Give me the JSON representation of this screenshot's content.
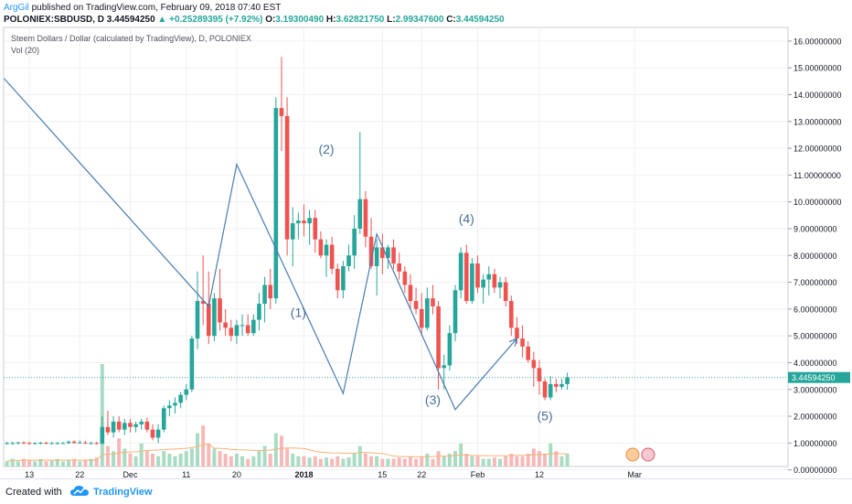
{
  "header": {
    "author": "ArgGil",
    "published": "published on TradingView.com, February 09, 2018 07:40 EST",
    "symbol": "POLONIEX:SBDUSD, D",
    "last": "3.44594250",
    "change": "▲ +0.25289395 (+7.92%)",
    "o_label": "O:",
    "o": "3.19300490",
    "h_label": "H:",
    "h": "3.62821750",
    "l_label": "L:",
    "l": "2.99347600",
    "c_label": "C:",
    "c": "3.44594250"
  },
  "footer": {
    "created": "Created with",
    "brand": "TradingView"
  },
  "colors": {
    "up": "#26a69a",
    "down": "#ef5350",
    "wave": "#4a7cb0",
    "price_line": "#26a69a",
    "vol_ma": "#f5b27a"
  },
  "chart_data": {
    "type": "candlestick",
    "title": "Steem Dollars / Dollar (calculated by TradingView), D, POLONIEX",
    "subtitle": "Vol (20)",
    "ylim": [
      0,
      16.2
    ],
    "y_ticks": [
      "16.00000000",
      "15.00000000",
      "14.00000000",
      "13.00000000",
      "12.00000000",
      "11.00000000",
      "10.00000000",
      "9.00000000",
      "8.00000000",
      "7.00000000",
      "6.00000000",
      "5.00000000",
      "4.00000000",
      "3.00000000",
      "2.00000000",
      "1.00000000",
      "0.00000000"
    ],
    "x_ticks": [
      {
        "label": "13",
        "date": "2017-11-13"
      },
      {
        "label": "22",
        "date": "2017-11-22"
      },
      {
        "label": "Dec",
        "date": "2017-12-01"
      },
      {
        "label": "11",
        "date": "2017-12-11"
      },
      {
        "label": "20",
        "date": "2017-12-20"
      },
      {
        "label": "2018",
        "date": "2018-01-01"
      },
      {
        "label": "15",
        "date": "2018-01-15"
      },
      {
        "label": "22",
        "date": "2018-01-22"
      },
      {
        "label": "Feb",
        "date": "2018-02-01"
      },
      {
        "label": "12",
        "date": "2018-02-12"
      },
      {
        "label": "Mar",
        "date": "2018-03-01"
      }
    ],
    "start_date": "2017-11-09",
    "current_price": "3.44594250",
    "candles": [
      [
        1.0,
        1.05,
        0.95,
        1.0
      ],
      [
        1.0,
        1.05,
        0.95,
        1.0
      ],
      [
        1.0,
        1.05,
        0.95,
        1.02
      ],
      [
        1.02,
        1.06,
        0.96,
        1.0
      ],
      [
        1.0,
        1.05,
        0.95,
        0.98
      ],
      [
        0.98,
        1.02,
        0.94,
        1.0
      ],
      [
        1.0,
        1.04,
        0.95,
        1.01
      ],
      [
        1.01,
        1.05,
        0.96,
        1.0
      ],
      [
        1.0,
        1.04,
        0.95,
        1.0
      ],
      [
        1.0,
        1.04,
        0.95,
        1.0
      ],
      [
        1.0,
        1.04,
        0.96,
        1.0
      ],
      [
        1.0,
        1.1,
        0.96,
        1.05
      ],
      [
        1.05,
        1.1,
        0.98,
        1.0
      ],
      [
        1.0,
        1.1,
        0.97,
        1.02
      ],
      [
        1.02,
        1.08,
        0.96,
        1.0
      ],
      [
        1.0,
        1.05,
        0.95,
        1.0
      ],
      [
        1.0,
        1.05,
        0.95,
        0.98
      ],
      [
        0.98,
        2.0,
        0.95,
        1.6
      ],
      [
        1.6,
        2.2,
        1.3,
        1.4
      ],
      [
        1.4,
        2.0,
        1.2,
        1.8
      ],
      [
        1.8,
        2.0,
        1.4,
        1.5
      ],
      [
        1.5,
        1.9,
        1.3,
        1.75
      ],
      [
        1.75,
        1.9,
        1.4,
        1.6
      ],
      [
        1.6,
        1.8,
        1.4,
        1.7
      ],
      [
        1.7,
        1.9,
        1.5,
        1.8
      ],
      [
        1.8,
        1.95,
        1.4,
        1.5
      ],
      [
        1.5,
        1.7,
        1.1,
        1.2
      ],
      [
        1.2,
        1.7,
        1.0,
        1.5
      ],
      [
        1.5,
        2.4,
        1.4,
        2.3
      ],
      [
        2.3,
        2.6,
        2.0,
        2.4
      ],
      [
        2.4,
        2.7,
        2.1,
        2.5
      ],
      [
        2.5,
        2.9,
        2.3,
        2.8
      ],
      [
        2.8,
        3.2,
        2.6,
        3.0
      ],
      [
        3.0,
        5.0,
        2.9,
        4.9
      ],
      [
        4.9,
        7.4,
        4.5,
        6.3
      ],
      [
        6.3,
        8.0,
        5.4,
        6.2
      ],
      [
        6.2,
        7.4,
        4.7,
        5.0
      ],
      [
        5.0,
        6.6,
        4.8,
        6.4
      ],
      [
        6.4,
        7.5,
        5.2,
        5.5
      ],
      [
        5.5,
        6.0,
        5.0,
        5.3
      ],
      [
        5.3,
        5.6,
        4.8,
        5.0
      ],
      [
        5.0,
        5.6,
        4.7,
        5.4
      ],
      [
        5.4,
        5.8,
        5.0,
        5.4
      ],
      [
        5.4,
        5.8,
        5.0,
        5.1
      ],
      [
        5.1,
        5.8,
        5.0,
        5.6
      ],
      [
        5.6,
        6.6,
        5.2,
        6.2
      ],
      [
        6.2,
        7.2,
        5.5,
        6.9
      ],
      [
        6.9,
        7.5,
        6.0,
        6.4
      ],
      [
        6.4,
        13.9,
        6.2,
        13.5
      ],
      [
        13.5,
        15.4,
        11.9,
        13.2
      ],
      [
        13.2,
        13.9,
        8.0,
        8.6
      ],
      [
        8.6,
        9.8,
        7.6,
        9.2
      ],
      [
        9.2,
        9.6,
        8.6,
        9.3
      ],
      [
        9.3,
        9.9,
        8.7,
        9.2
      ],
      [
        9.2,
        9.7,
        8.4,
        9.4
      ],
      [
        9.4,
        9.7,
        8.1,
        8.6
      ],
      [
        8.6,
        8.9,
        7.9,
        8.0
      ],
      [
        8.0,
        8.6,
        7.2,
        8.4
      ],
      [
        8.4,
        8.7,
        7.3,
        7.5
      ],
      [
        7.5,
        7.7,
        6.4,
        6.7
      ],
      [
        6.7,
        7.8,
        6.4,
        7.6
      ],
      [
        7.6,
        8.4,
        7.4,
        8.0
      ],
      [
        8.0,
        9.5,
        7.5,
        9.0
      ],
      [
        9.0,
        12.6,
        8.8,
        10.1
      ],
      [
        10.1,
        10.4,
        8.3,
        8.7
      ],
      [
        8.7,
        9.4,
        7.5,
        7.6
      ],
      [
        7.6,
        8.6,
        6.5,
        8.3
      ],
      [
        8.3,
        8.8,
        7.3,
        7.9
      ],
      [
        7.9,
        8.4,
        7.5,
        8.3
      ],
      [
        8.3,
        8.6,
        7.5,
        7.7
      ],
      [
        7.7,
        8.1,
        7.1,
        7.4
      ],
      [
        7.4,
        7.6,
        6.6,
        6.9
      ],
      [
        6.9,
        7.3,
        6.0,
        6.3
      ],
      [
        6.3,
        6.8,
        5.8,
        6.0
      ],
      [
        6.0,
        6.6,
        5.0,
        5.3
      ],
      [
        5.3,
        6.8,
        5.2,
        6.4
      ],
      [
        6.4,
        6.9,
        5.8,
        6.1
      ],
      [
        6.1,
        6.3,
        3.0,
        3.8
      ],
      [
        3.8,
        4.3,
        3.0,
        3.9
      ],
      [
        3.9,
        5.4,
        3.7,
        5.1
      ],
      [
        5.1,
        6.9,
        4.8,
        6.7
      ],
      [
        6.7,
        8.3,
        6.4,
        8.1
      ],
      [
        8.1,
        8.4,
        6.2,
        6.3
      ],
      [
        6.3,
        7.9,
        6.2,
        7.7
      ],
      [
        7.7,
        8.0,
        6.6,
        6.8
      ],
      [
        6.8,
        7.3,
        6.2,
        7.1
      ],
      [
        7.1,
        7.6,
        6.5,
        7.3
      ],
      [
        7.3,
        7.5,
        6.6,
        6.8
      ],
      [
        6.8,
        7.2,
        6.4,
        7.0
      ],
      [
        7.0,
        7.2,
        6.1,
        6.3
      ],
      [
        6.3,
        6.5,
        5.0,
        5.3
      ],
      [
        5.3,
        5.7,
        4.7,
        4.9
      ],
      [
        4.9,
        5.4,
        4.2,
        4.6
      ],
      [
        4.6,
        4.8,
        4.0,
        4.1
      ],
      [
        4.1,
        4.4,
        3.1,
        3.8
      ],
      [
        3.8,
        4.1,
        2.8,
        3.3
      ],
      [
        3.3,
        3.4,
        2.6,
        2.7
      ],
      [
        2.7,
        3.5,
        2.6,
        3.2
      ],
      [
        3.2,
        3.4,
        2.9,
        3.1
      ],
      [
        3.1,
        3.4,
        3.0,
        3.2
      ],
      [
        3.2,
        3.63,
        2.99,
        3.45
      ]
    ],
    "volumes": [
      0.2,
      0.3,
      0.2,
      0.3,
      0.25,
      0.2,
      0.3,
      0.2,
      0.25,
      0.3,
      0.2,
      0.25,
      0.3,
      0.2,
      0.25,
      0.3,
      0.35,
      4.0,
      0.8,
      0.6,
      1.1,
      0.7,
      0.5,
      0.4,
      0.9,
      0.6,
      0.5,
      0.4,
      0.6,
      0.5,
      0.4,
      0.5,
      0.6,
      0.7,
      1.3,
      1.6,
      0.9,
      0.7,
      0.6,
      0.5,
      0.4,
      0.5,
      0.4,
      0.3,
      0.4,
      0.6,
      0.8,
      0.5,
      1.3,
      1.2,
      0.7,
      0.5,
      0.4,
      0.4,
      0.35,
      0.4,
      0.3,
      0.35,
      0.3,
      0.4,
      0.3,
      0.35,
      0.5,
      0.8,
      0.5,
      0.4,
      0.4,
      0.3,
      0.3,
      0.3,
      0.35,
      0.3,
      0.4,
      0.3,
      0.4,
      0.5,
      0.3,
      0.6,
      0.4,
      0.5,
      0.6,
      0.9,
      0.5,
      0.4,
      0.4,
      0.3,
      0.3,
      0.35,
      0.3,
      0.4,
      0.5,
      0.4,
      0.4,
      0.5,
      0.7,
      0.6,
      0.5,
      0.9,
      0.6,
      0.4,
      0.5
    ],
    "wave_path": [
      [
        -0.5,
        14.6
      ],
      [
        36,
        6.1
      ],
      [
        41,
        11.4
      ],
      [
        60,
        2.85
      ],
      [
        66,
        8.8
      ],
      [
        80,
        2.25
      ],
      [
        91,
        4.9
      ]
    ],
    "wave_labels": [
      {
        "text": "(1)",
        "date": "2017-12-31",
        "y": 5.7
      },
      {
        "text": "(2)",
        "date": "2018-01-05",
        "y": 11.8
      },
      {
        "text": "(3)",
        "date": "2018-01-24",
        "y": 2.45
      },
      {
        "text": "(4)",
        "date": "2018-01-30",
        "y": 9.2
      },
      {
        "text": "(5)",
        "date": "2018-02-13",
        "y": 1.85
      }
    ]
  }
}
